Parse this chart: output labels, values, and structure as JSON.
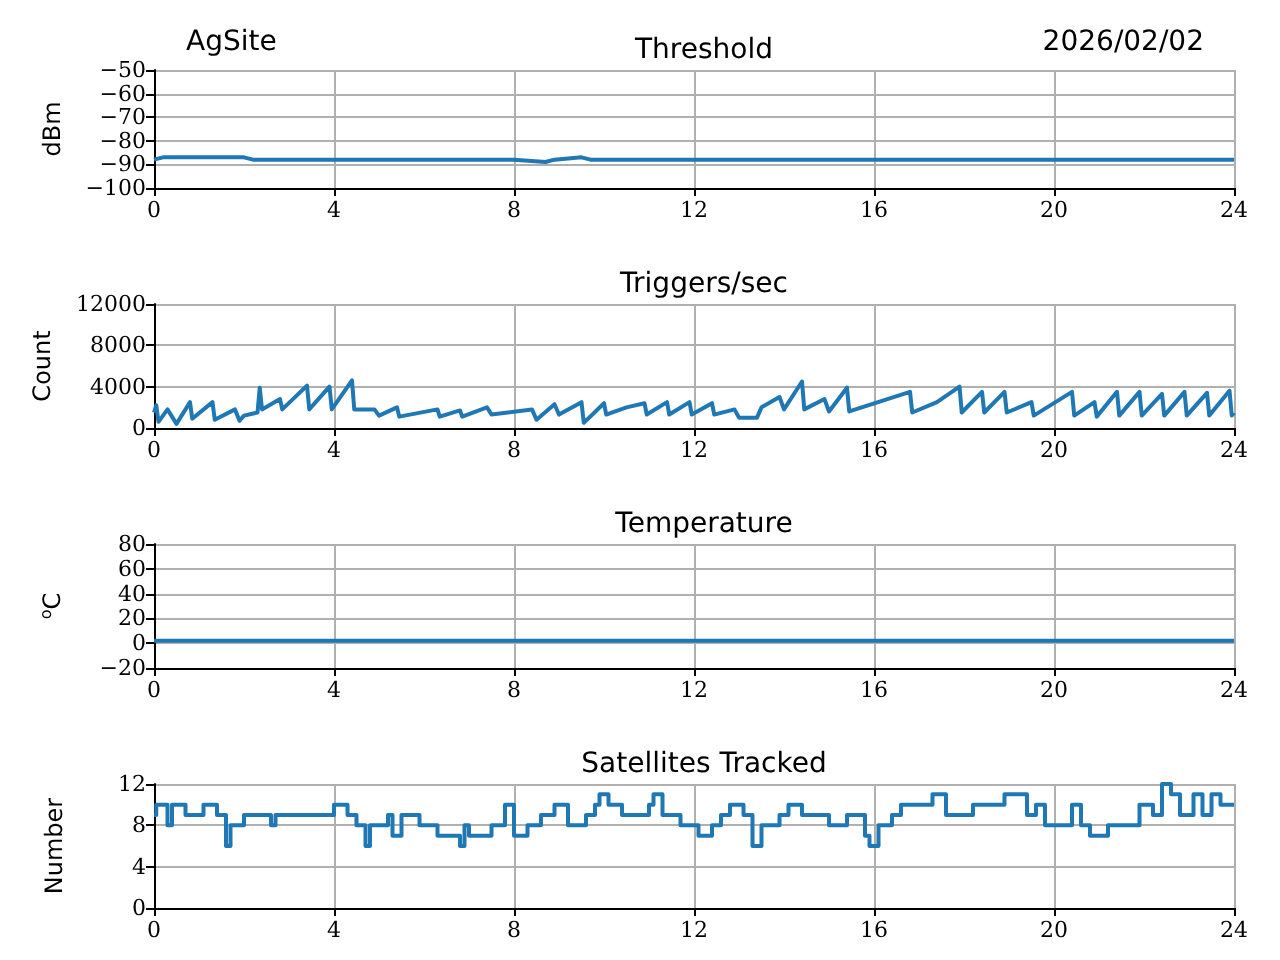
{
  "chart_data": [
    {
      "type": "line",
      "title": "Threshold",
      "annotations": [
        "AgSite",
        "2026/02/02"
      ],
      "ylabel": "dBm",
      "grid": true,
      "xlim": [
        0,
        24
      ],
      "xticks": [
        0,
        4,
        8,
        12,
        16,
        20,
        24
      ],
      "ylim": [
        -100,
        -50
      ],
      "yticks": [
        -100,
        -90,
        -80,
        -70,
        -60,
        -50
      ],
      "series": [
        {
          "color": "#1f77b4",
          "x": [
            0,
            0.2,
            1,
            2,
            2.2,
            3,
            4,
            4.8,
            5,
            6,
            8,
            8.7,
            8.9,
            9.5,
            9.7,
            12,
            13.5,
            16,
            20,
            24
          ],
          "values": [
            -88,
            -87,
            -87,
            -87,
            -88,
            -88,
            -88,
            -88,
            -88,
            -88,
            -88,
            -89,
            -88,
            -87,
            -88,
            -88,
            -88,
            -88,
            -88,
            -88
          ]
        }
      ]
    },
    {
      "type": "line",
      "title": "Triggers/sec",
      "ylabel": "Count",
      "grid": true,
      "xlim": [
        0,
        24
      ],
      "xticks": [
        0,
        4,
        8,
        12,
        16,
        20,
        24
      ],
      "ylim": [
        0,
        12000
      ],
      "yticks": [
        0,
        4000,
        8000,
        12000
      ],
      "series": [
        {
          "color": "#1f77b4",
          "x": [
            0,
            0.05,
            0.1,
            0.3,
            0.5,
            0.8,
            0.85,
            1.3,
            1.35,
            1.8,
            1.9,
            2.0,
            2.3,
            2.35,
            2.4,
            2.8,
            2.85,
            3.4,
            3.45,
            3.9,
            3.95,
            4.4,
            4.45,
            4.9,
            5.0,
            5.4,
            5.45,
            6.3,
            6.35,
            6.8,
            6.85,
            7.4,
            7.5,
            8.4,
            8.5,
            8.9,
            9.0,
            9.5,
            9.55,
            10.0,
            10.05,
            10.5,
            10.9,
            10.95,
            11.4,
            11.45,
            11.9,
            11.95,
            12.4,
            12.45,
            12.9,
            13.0,
            13.4,
            13.5,
            13.9,
            14.0,
            14.4,
            14.45,
            14.9,
            15.0,
            15.4,
            15.45,
            16.8,
            16.85,
            17.4,
            17.9,
            17.95,
            18.4,
            18.45,
            18.9,
            18.95,
            19.5,
            19.55,
            20.4,
            20.45,
            20.9,
            20.95,
            21.4,
            21.45,
            21.9,
            21.95,
            22.4,
            22.45,
            22.9,
            22.95,
            23.4,
            23.45,
            23.9,
            23.95,
            24
          ],
          "values": [
            1500,
            2200,
            600,
            1800,
            400,
            2500,
            900,
            2500,
            800,
            1800,
            700,
            1200,
            1500,
            3900,
            1800,
            2800,
            1800,
            4100,
            1800,
            4000,
            1800,
            4600,
            1800,
            1800,
            1200,
            2000,
            1100,
            1800,
            1100,
            1700,
            1100,
            2000,
            1300,
            1800,
            800,
            2300,
            1300,
            2500,
            500,
            2400,
            1300,
            2000,
            2400,
            1300,
            2500,
            1300,
            2500,
            1300,
            2400,
            1300,
            1800,
            1000,
            1000,
            2000,
            3000,
            1800,
            4500,
            1800,
            2800,
            1600,
            3900,
            1600,
            3500,
            1500,
            2500,
            4000,
            1500,
            3500,
            1500,
            3500,
            1500,
            2500,
            1200,
            3500,
            1200,
            2500,
            1100,
            3500,
            1200,
            3500,
            1200,
            3300,
            1200,
            3500,
            1200,
            3400,
            1200,
            3600,
            1200,
            1500
          ]
        }
      ]
    },
    {
      "type": "line",
      "title": "Temperature",
      "ylabel": "$^{o}$C",
      "grid": true,
      "xlim": [
        0,
        24
      ],
      "xticks": [
        0,
        4,
        8,
        12,
        16,
        20,
        24
      ],
      "ylim": [
        -20,
        80
      ],
      "yticks": [
        -20,
        0,
        20,
        40,
        60,
        80
      ],
      "series": [
        {
          "color": "#1f77b4",
          "x": [
            0,
            6,
            12,
            18,
            24
          ],
          "values": [
            2,
            2,
            2,
            2,
            2
          ]
        }
      ]
    },
    {
      "type": "step",
      "title": "Satellites Tracked",
      "ylabel": "Number",
      "grid": true,
      "xlim": [
        0,
        24
      ],
      "xticks": [
        0,
        4,
        8,
        12,
        16,
        20,
        24
      ],
      "ylim": [
        0,
        12
      ],
      "yticks": [
        0,
        4,
        8,
        12
      ],
      "series": [
        {
          "color": "#1f77b4",
          "x": [
            0,
            0.05,
            0.3,
            0.4,
            0.7,
            1.0,
            1.1,
            1.4,
            1.6,
            1.7,
            2.0,
            2.6,
            2.7,
            3.0,
            4.0,
            4.3,
            4.5,
            4.7,
            4.8,
            5.2,
            5.3,
            5.5,
            5.9,
            6.3,
            6.8,
            6.9,
            7.0,
            7.5,
            7.8,
            8.0,
            8.3,
            8.6,
            8.9,
            9.2,
            9.6,
            9.8,
            9.9,
            10.1,
            10.4,
            10.7,
            11.0,
            11.1,
            11.3,
            11.7,
            12.1,
            12.4,
            12.6,
            12.8,
            13.1,
            13.3,
            13.5,
            13.9,
            14.1,
            14.4,
            14.7,
            15.0,
            15.4,
            15.8,
            15.9,
            16.1,
            16.4,
            16.6,
            17.0,
            17.3,
            17.6,
            18.2,
            18.9,
            19.4,
            19.6,
            19.8,
            20.4,
            20.6,
            20.8,
            21.2,
            21.9,
            22.2,
            22.4,
            22.6,
            22.8,
            23.1,
            23.3,
            23.5,
            23.7,
            24
          ],
          "values": [
            9,
            10,
            8,
            10,
            9,
            9,
            10,
            9,
            6,
            8,
            9,
            8,
            9,
            9,
            10,
            9,
            8,
            6,
            8,
            9,
            7,
            9,
            8,
            7,
            6,
            8,
            7,
            8,
            10,
            7,
            8,
            9,
            10,
            8,
            9,
            10,
            11,
            10,
            9,
            9,
            10,
            11,
            9,
            8,
            7,
            8,
            9,
            10,
            9,
            6,
            8,
            9,
            10,
            9,
            9,
            8,
            9,
            7,
            6,
            8,
            9,
            10,
            10,
            11,
            9,
            10,
            11,
            9,
            10,
            8,
            10,
            8,
            7,
            8,
            10,
            9,
            12,
            11,
            9,
            11,
            9,
            11,
            10,
            10
          ]
        }
      ]
    }
  ]
}
